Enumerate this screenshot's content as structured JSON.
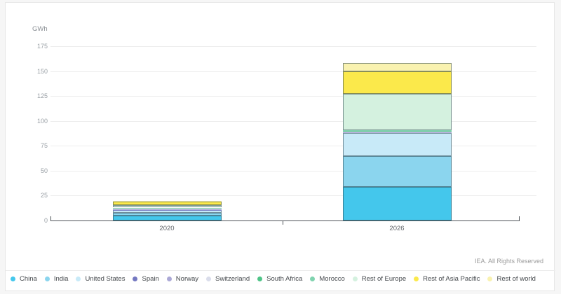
{
  "footer": {
    "copyright": "IEA. All Rights Reserved"
  },
  "chart_data": {
    "type": "bar",
    "stacked": true,
    "title": "",
    "xlabel": "",
    "ylabel": "GWh",
    "categories": [
      "2020",
      "2026"
    ],
    "yticks": [
      0,
      25,
      50,
      75,
      100,
      125,
      150,
      175
    ],
    "ylim": [
      0,
      175
    ],
    "grid": true,
    "legend_position": "bottom",
    "series": [
      {
        "name": "China",
        "color": "#44C7EC",
        "values": [
          5.0,
          34.0
        ]
      },
      {
        "name": "India",
        "color": "#8BD5EE",
        "values": [
          3.0,
          31.0
        ]
      },
      {
        "name": "United States",
        "color": "#C8EAF8",
        "values": [
          2.5,
          23.0
        ]
      },
      {
        "name": "Spain",
        "color": "#7478C1",
        "values": [
          0.3,
          0.4
        ]
      },
      {
        "name": "Norway",
        "color": "#ABA8D6",
        "values": [
          0.3,
          0.4
        ]
      },
      {
        "name": "Switzerland",
        "color": "#DADDEB",
        "values": [
          1.5,
          0.4
        ]
      },
      {
        "name": "South Africa",
        "color": "#4FC487",
        "values": [
          0.2,
          0.5
        ]
      },
      {
        "name": "Morocco",
        "color": "#80D3AF",
        "values": [
          0.2,
          0.8
        ]
      },
      {
        "name": "Rest of Europe",
        "color": "#D4F1DF",
        "values": [
          2.5,
          37.0
        ]
      },
      {
        "name": "Rest of Asia Pacific",
        "color": "#FBE94B",
        "values": [
          3.5,
          22.0
        ]
      },
      {
        "name": "Rest of world",
        "color": "#F9F2B0",
        "values": [
          1.0,
          8.5
        ]
      }
    ],
    "totals": [
      20,
      158
    ]
  }
}
